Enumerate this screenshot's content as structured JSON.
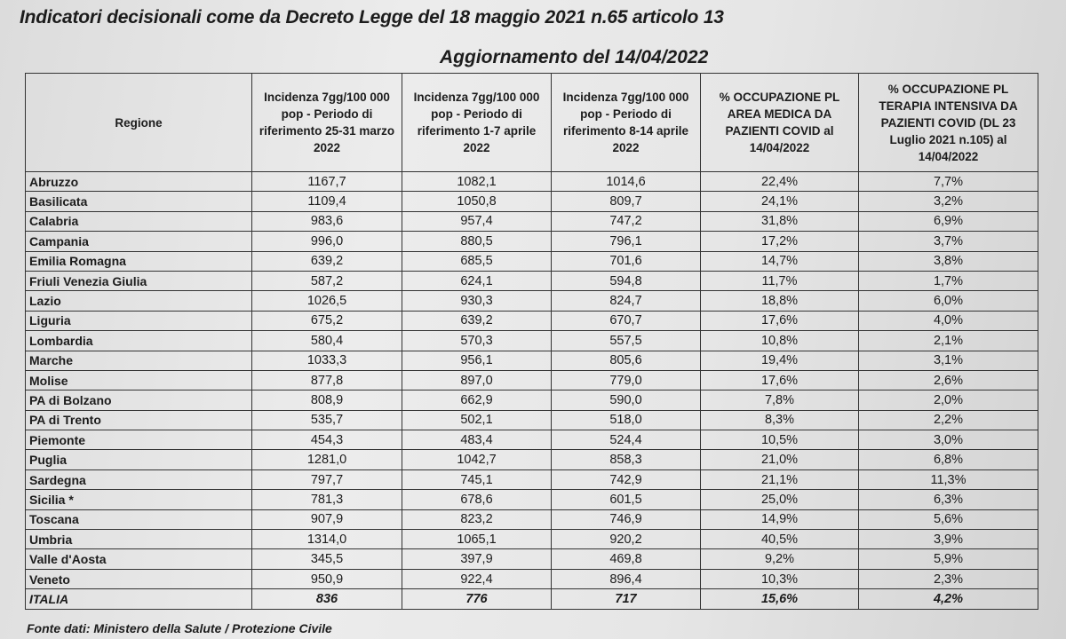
{
  "title": "Indicatori decisionali come da Decreto Legge del 18 maggio 2021 n.65 articolo 13",
  "subtitle": "Aggiornamento del 14/04/2022",
  "columns": [
    "Regione",
    "Incidenza 7gg/100 000 pop - Periodo di riferimento 25-31 marzo 2022",
    "Incidenza 7gg/100 000 pop - Periodo di riferimento 1-7 aprile 2022",
    "Incidenza 7gg/100 000 pop - Periodo di riferimento 8-14 aprile 2022",
    "% OCCUPAZIONE PL AREA MEDICA DA PAZIENTI COVID al 14/04/2022",
    "% OCCUPAZIONE PL TERAPIA INTENSIVA DA PAZIENTI COVID (DL 23 Luglio 2021 n.105) al 14/04/2022"
  ],
  "rows": [
    [
      "Abruzzo",
      "1167,7",
      "1082,1",
      "1014,6",
      "22,4%",
      "7,7%"
    ],
    [
      "Basilicata",
      "1109,4",
      "1050,8",
      "809,7",
      "24,1%",
      "3,2%"
    ],
    [
      "Calabria",
      "983,6",
      "957,4",
      "747,2",
      "31,8%",
      "6,9%"
    ],
    [
      "Campania",
      "996,0",
      "880,5",
      "796,1",
      "17,2%",
      "3,7%"
    ],
    [
      "Emilia Romagna",
      "639,2",
      "685,5",
      "701,6",
      "14,7%",
      "3,8%"
    ],
    [
      "Friuli Venezia Giulia",
      "587,2",
      "624,1",
      "594,8",
      "11,7%",
      "1,7%"
    ],
    [
      "Lazio",
      "1026,5",
      "930,3",
      "824,7",
      "18,8%",
      "6,0%"
    ],
    [
      "Liguria",
      "675,2",
      "639,2",
      "670,7",
      "17,6%",
      "4,0%"
    ],
    [
      "Lombardia",
      "580,4",
      "570,3",
      "557,5",
      "10,8%",
      "2,1%"
    ],
    [
      "Marche",
      "1033,3",
      "956,1",
      "805,6",
      "19,4%",
      "3,1%"
    ],
    [
      "Molise",
      "877,8",
      "897,0",
      "779,0",
      "17,6%",
      "2,6%"
    ],
    [
      "PA di Bolzano",
      "808,9",
      "662,9",
      "590,0",
      "7,8%",
      "2,0%"
    ],
    [
      "PA di Trento",
      "535,7",
      "502,1",
      "518,0",
      "8,3%",
      "2,2%"
    ],
    [
      "Piemonte",
      "454,3",
      "483,4",
      "524,4",
      "10,5%",
      "3,0%"
    ],
    [
      "Puglia",
      "1281,0",
      "1042,7",
      "858,3",
      "21,0%",
      "6,8%"
    ],
    [
      "Sardegna",
      "797,7",
      "745,1",
      "742,9",
      "21,1%",
      "11,3%"
    ],
    [
      "Sicilia *",
      "781,3",
      "678,6",
      "601,5",
      "25,0%",
      "6,3%"
    ],
    [
      "Toscana",
      "907,9",
      "823,2",
      "746,9",
      "14,9%",
      "5,6%"
    ],
    [
      "Umbria",
      "1314,0",
      "1065,1",
      "920,2",
      "40,5%",
      "3,9%"
    ],
    [
      "Valle d'Aosta",
      "345,5",
      "397,9",
      "469,8",
      "9,2%",
      "5,9%"
    ],
    [
      "Veneto",
      "950,9",
      "922,4",
      "896,4",
      "10,3%",
      "2,3%"
    ]
  ],
  "total": [
    "ITALIA",
    "836",
    "776",
    "717",
    "15,6%",
    "4,2%"
  ],
  "footer": "Fonte dati: Ministero della Salute / Protezione Civile"
}
